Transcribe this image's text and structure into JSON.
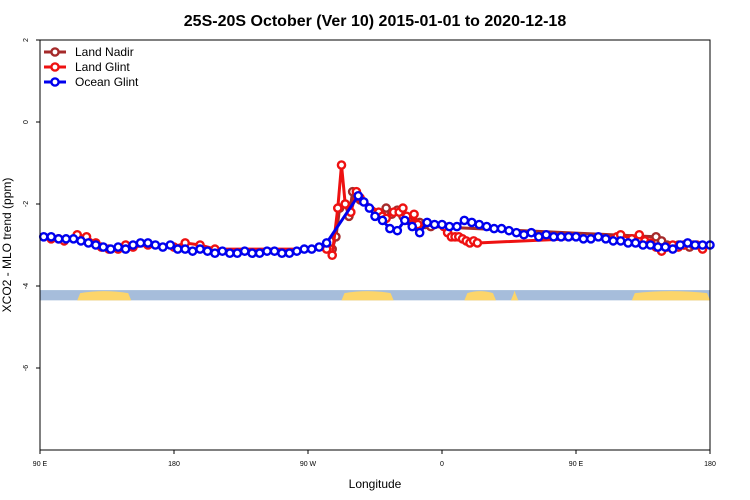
{
  "chart_data": {
    "type": "line",
    "title": "25S-20S October (Ver 10)   2015-01-01 to 2020-12-18",
    "xlabel": "Longitude",
    "ylabel": "XCO2 - MLO trend (ppm)",
    "xlim": [
      90,
      450
    ],
    "ylim": [
      -8,
      2
    ],
    "x_ticks": [
      {
        "value": 90,
        "label": "90 E"
      },
      {
        "value": 162,
        "label": "180"
      },
      {
        "value": 234,
        "label": "90 W"
      },
      {
        "value": 306,
        "label": "0"
      },
      {
        "value": 378,
        "label": "90 E"
      },
      {
        "value": 450,
        "label": "180"
      }
    ],
    "y_ticks": [
      {
        "value": 2,
        "label": "2"
      },
      {
        "value": 0,
        "label": "0"
      },
      {
        "value": -2,
        "label": "-2"
      },
      {
        "value": -4,
        "label": "-4"
      },
      {
        "value": -6,
        "label": "-6"
      }
    ],
    "legend_position": "top-left",
    "land_mask": {
      "y_range": [
        -4.35,
        -4.1
      ],
      "ocean_color": "#a6bddb",
      "land_color": "#fcd56a",
      "land_segments": [
        [
          110,
          139
        ],
        [
          252,
          280
        ],
        [
          318,
          335
        ],
        [
          343,
          347
        ],
        [
          408,
          454
        ]
      ]
    },
    "series": [
      {
        "name": "Land Nadir",
        "color": "#a52a2a",
        "x": [
          247,
          249,
          251,
          254,
          256,
          258,
          260,
          262,
          273,
          276,
          279,
          282,
          285,
          288,
          291,
          294,
          297,
          300,
          421,
          424,
          427,
          430,
          433,
          436,
          439,
          441
        ],
        "values": [
          -3.1,
          -2.8,
          -2.1,
          -2.0,
          -2.3,
          -1.7,
          -1.8,
          -1.9,
          -2.25,
          -2.1,
          -2.25,
          -2.15,
          -2.3,
          -2.4,
          -2.5,
          -2.45,
          -2.5,
          -2.55,
          -2.8,
          -2.9,
          -3.0,
          -3.05,
          -3.0,
          -3.0,
          -3.05,
          -3.0
        ]
      },
      {
        "name": "Land Glint",
        "color": "#ee1111",
        "x": [
          96,
          100,
          103,
          110,
          115,
          120,
          123,
          127,
          132,
          136,
          140,
          148,
          162,
          168,
          176,
          184,
          244,
          247,
          250,
          252,
          254,
          257,
          260,
          262,
          272,
          274,
          276,
          280,
          283,
          285,
          287,
          290,
          291,
          293,
          307,
          309,
          311,
          313,
          315,
          317,
          319,
          321,
          323,
          325,
          400,
          402,
          408,
          412,
          415,
          418,
          421,
          424,
          427,
          430,
          433,
          436,
          443,
          446
        ],
        "values": [
          -2.85,
          -2.85,
          -2.9,
          -2.75,
          -2.8,
          -2.95,
          -3.05,
          -3.1,
          -3.1,
          -3.0,
          -3.05,
          -3.0,
          -3.05,
          -2.95,
          -3.0,
          -3.1,
          -3.1,
          -3.25,
          -2.1,
          -1.05,
          -2.0,
          -2.2,
          -1.7,
          -1.85,
          -2.2,
          -2.3,
          -2.35,
          -2.2,
          -2.2,
          -2.1,
          -2.3,
          -2.5,
          -2.25,
          -2.5,
          -2.55,
          -2.7,
          -2.8,
          -2.8,
          -2.8,
          -2.85,
          -2.9,
          -2.95,
          -2.9,
          -2.95,
          -2.8,
          -2.75,
          -2.85,
          -2.75,
          -2.9,
          -2.95,
          -3.05,
          -3.15,
          -3.05,
          -3.0,
          -3.05,
          -3.0,
          -3.0,
          -3.1
        ]
      },
      {
        "name": "Ocean Glint",
        "color": "#0000ee",
        "x": [
          92,
          96,
          100,
          104,
          108,
          112,
          116,
          120,
          124,
          128,
          132,
          136,
          140,
          144,
          148,
          152,
          156,
          160,
          164,
          168,
          172,
          176,
          180,
          184,
          188,
          192,
          196,
          200,
          204,
          208,
          212,
          216,
          220,
          224,
          228,
          232,
          236,
          240,
          244,
          261,
          264,
          267,
          270,
          274,
          278,
          282,
          286,
          290,
          294,
          298,
          302,
          306,
          310,
          314,
          318,
          322,
          326,
          330,
          334,
          338,
          342,
          346,
          350,
          354,
          358,
          362,
          366,
          370,
          374,
          378,
          382,
          386,
          390,
          394,
          398,
          402,
          406,
          410,
          414,
          418,
          422,
          426,
          430,
          434,
          438,
          442,
          446,
          450
        ],
        "values": [
          -2.8,
          -2.8,
          -2.85,
          -2.85,
          -2.85,
          -2.9,
          -2.95,
          -3.0,
          -3.05,
          -3.1,
          -3.05,
          -3.1,
          -3.0,
          -2.95,
          -2.95,
          -3.0,
          -3.05,
          -3.0,
          -3.1,
          -3.1,
          -3.15,
          -3.1,
          -3.15,
          -3.2,
          -3.15,
          -3.2,
          -3.2,
          -3.15,
          -3.2,
          -3.2,
          -3.15,
          -3.15,
          -3.2,
          -3.2,
          -3.15,
          -3.1,
          -3.1,
          -3.05,
          -2.95,
          -1.8,
          -1.95,
          -2.1,
          -2.3,
          -2.4,
          -2.6,
          -2.65,
          -2.4,
          -2.55,
          -2.7,
          -2.45,
          -2.5,
          -2.5,
          -2.55,
          -2.55,
          -2.4,
          -2.45,
          -2.5,
          -2.55,
          -2.6,
          -2.6,
          -2.65,
          -2.7,
          -2.75,
          -2.7,
          -2.8,
          -2.75,
          -2.8,
          -2.8,
          -2.8,
          -2.8,
          -2.85,
          -2.85,
          -2.8,
          -2.85,
          -2.9,
          -2.9,
          -2.95,
          -2.95,
          -3.0,
          -3.0,
          -3.05,
          -3.05,
          -3.1,
          -3.0,
          -2.95,
          -3.0,
          -3.0,
          -3.0
        ]
      }
    ]
  }
}
